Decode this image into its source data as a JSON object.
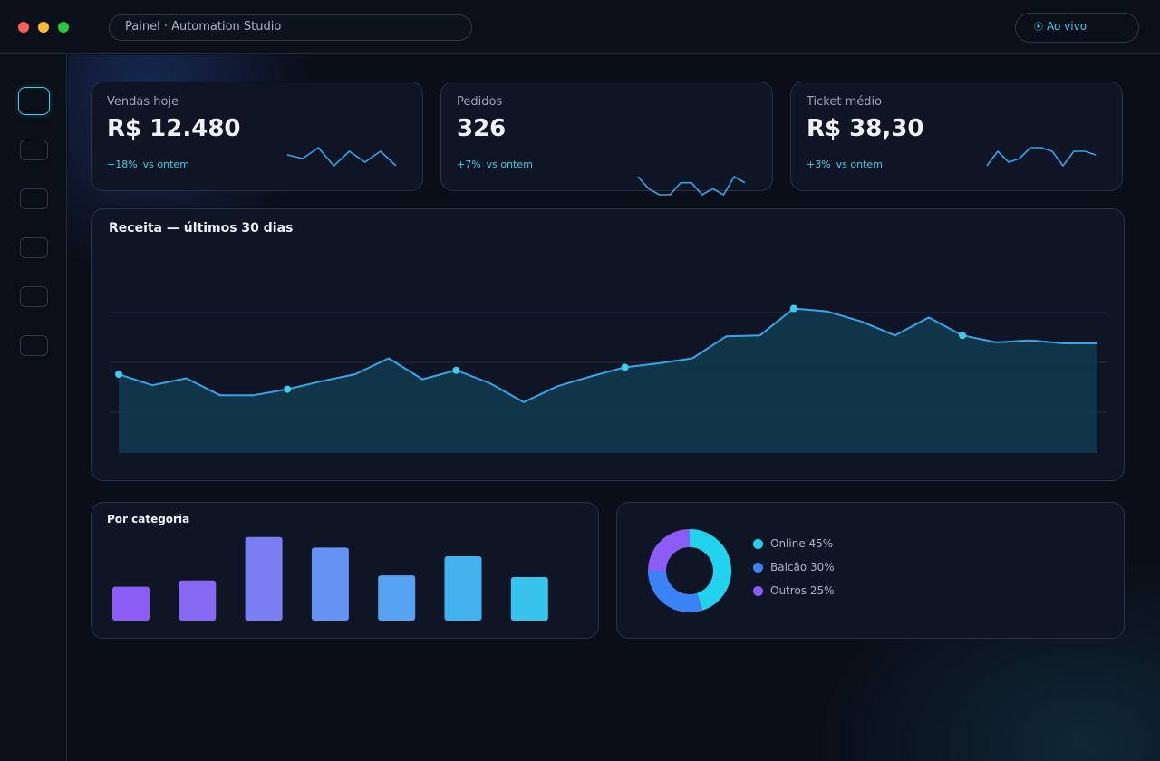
{
  "window": {
    "address": "Painel · Automation Studio",
    "live_icon": "⦿",
    "live_label": "Ao vivo"
  },
  "sidebar": {
    "items": [
      {
        "name": "nav-item-1",
        "active": true
      },
      {
        "name": "nav-item-2"
      },
      {
        "name": "nav-item-3"
      },
      {
        "name": "nav-item-4"
      },
      {
        "name": "nav-item-5"
      },
      {
        "name": "nav-item-6"
      }
    ]
  },
  "kpis": [
    {
      "label": "Vendas hoje",
      "value": "R$ 12.480",
      "delta": "+18%",
      "delta_suffix": "vs ontem",
      "spark": [
        3,
        2,
        5,
        0,
        4,
        1,
        4,
        0
      ]
    },
    {
      "label": "Pedidos",
      "value": "326",
      "delta": "+7%",
      "delta_suffix": "vs ontem",
      "spark": [
        4,
        2,
        1,
        1,
        3,
        3,
        1,
        2,
        1,
        4,
        3
      ]
    },
    {
      "label": "Ticket médio",
      "value": "R$ 38,30",
      "delta": "+3%",
      "delta_suffix": "vs ontem",
      "spark": [
        0,
        4,
        1,
        2,
        5,
        5,
        4,
        0,
        4,
        4,
        3
      ]
    }
  ],
  "revenue_chart": {
    "title": "Receita — últimos 30 dias",
    "line_color": "#3aa3ea",
    "fill_color": "#12394d",
    "marker_color": "#3ecfe6"
  },
  "category_chart": {
    "title": "Por categoria",
    "colors": [
      "#8b5cf6",
      "#8669f3",
      "#7a7ef2",
      "#6692f4",
      "#57a3f2",
      "#44b2ef",
      "#37c3ec"
    ]
  },
  "channel_chart": {
    "colors": {
      "online": "#22d3ee",
      "balcao": "#3b82f6",
      "outros": "#8b5cf6"
    }
  },
  "chart_data": [
    {
      "type": "area",
      "title": "Receita — últimos 30 dias",
      "x": [
        1,
        2,
        3,
        4,
        5,
        6,
        7,
        8,
        9,
        10,
        11,
        12,
        13,
        14,
        15,
        16,
        17,
        18,
        19,
        20,
        21,
        22,
        23,
        24,
        25,
        26,
        27,
        28,
        29,
        30
      ],
      "values": [
        79,
        68,
        75,
        58,
        58,
        64,
        72,
        79,
        95,
        74,
        83,
        70,
        51,
        67,
        77,
        86,
        90,
        95,
        117,
        118,
        145,
        142,
        132,
        118,
        136,
        118,
        111,
        113,
        110,
        110
      ],
      "highlighted_points": [
        1,
        6,
        11,
        16,
        21,
        26
      ],
      "ylim": [
        0,
        200
      ],
      "grid": true
    },
    {
      "type": "bar",
      "title": "Por categoria",
      "categories": [
        "",
        "",
        "",
        "",
        "",
        "",
        ""
      ],
      "values": [
        39,
        46,
        96,
        84,
        52,
        74,
        50
      ],
      "ylim": [
        0,
        100
      ]
    },
    {
      "type": "pie",
      "donut": true,
      "labels": [
        "Online 45%",
        "Balcão 30%",
        "Outros 25%"
      ],
      "values": [
        45,
        30,
        25
      ]
    }
  ]
}
